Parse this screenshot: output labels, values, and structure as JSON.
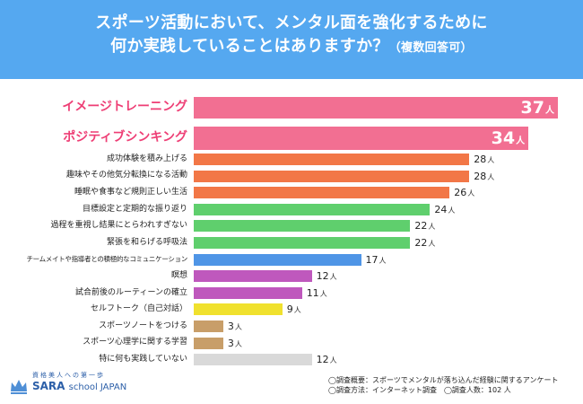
{
  "title": {
    "line1": "スポーツ活動において、メンタル面を強化するために",
    "line2": "何か実践していることはありますか？",
    "line2_suffix": "（複数回答可）"
  },
  "chart_data": {
    "type": "bar",
    "orientation": "horizontal",
    "unit": "人",
    "categories": [
      "イメージトレーニング",
      "ポジティブシンキング",
      "成功体験を積み上げる",
      "趣味やその他気分転換になる活動",
      "睡眠や食事など規則正しい生活",
      "目標設定と定期的な振り返り",
      "過程を重視し結果にとらわれすぎない",
      "緊張を和らげる呼吸法",
      "チームメイトや指導者との積極的なコミュニケーション",
      "瞑想",
      "試合前後のルーティーンの確立",
      "セルフトーク（自己対話）",
      "スポーツノートをつける",
      "スポーツ心理学に関する学習",
      "特に何も実践していない"
    ],
    "values": [
      37,
      34,
      28,
      28,
      26,
      24,
      22,
      22,
      17,
      12,
      11,
      9,
      3,
      3,
      12
    ],
    "xlim": [
      0,
      37
    ]
  },
  "colors": {
    "header": "#55a8f0",
    "bars": [
      "#f26f92",
      "#f26f92",
      "#f27747",
      "#f27747",
      "#f27747",
      "#5fcf6d",
      "#5fcf6d",
      "#5fcf6d",
      "#4f95e6",
      "#bf58bd",
      "#bf58bd",
      "#f0e12e",
      "#c89e69",
      "#c89e69",
      "#d9d9d9"
    ],
    "top_label": "#ee3e75"
  },
  "footnotes": {
    "line1": "◯調査概要：スポーツでメンタルが落ち込んだ経験に関するアンケート",
    "line2": "◯調査方法：インターネット調査　◯調査人数：102 人"
  },
  "logo": {
    "tagline": "資格美人への第一歩",
    "brand": "SARA",
    "brand_suffix": "school JAPAN"
  }
}
